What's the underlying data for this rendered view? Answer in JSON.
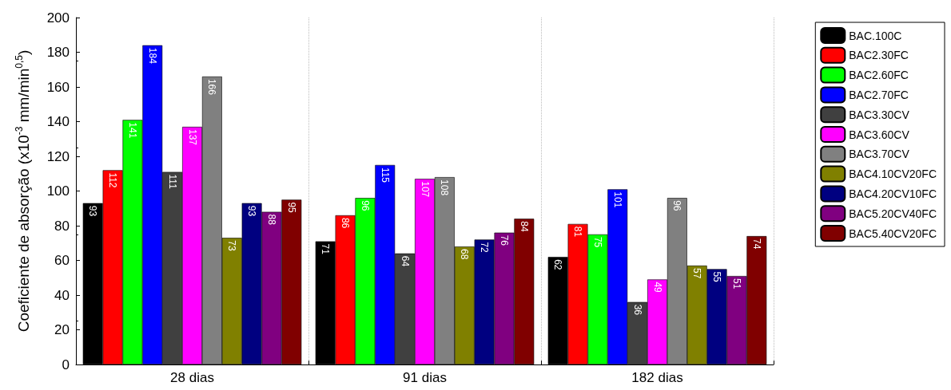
{
  "chart_data": {
    "type": "bar",
    "ylabel": "Coeficiente de absorção (x10$^{-3}$ mm/min$^{0,5}$)",
    "categories": [
      "28 dias",
      "91 dias",
      "182 dias"
    ],
    "series": [
      {
        "name": "BAC.100C",
        "color": "#000000",
        "values": [
          93,
          71,
          62
        ]
      },
      {
        "name": "BAC2.30FC",
        "color": "#ff0000",
        "values": [
          112,
          86,
          81
        ]
      },
      {
        "name": "BAC2.60FC",
        "color": "#00ff00",
        "values": [
          141,
          96,
          75
        ]
      },
      {
        "name": "BAC2.70FC",
        "color": "#0000ff",
        "values": [
          184,
          115,
          101
        ]
      },
      {
        "name": "BAC3.30CV",
        "color": "#404040",
        "values": [
          111,
          64,
          36
        ]
      },
      {
        "name": "BAC3.60CV",
        "color": "#ff00ff",
        "values": [
          137,
          107,
          49
        ]
      },
      {
        "name": "BAC3.70CV",
        "color": "#808080",
        "values": [
          166,
          108,
          96
        ]
      },
      {
        "name": "BAC4.10CV20FC",
        "color": "#808000",
        "values": [
          73,
          68,
          57
        ]
      },
      {
        "name": "BAC4.20CV10FC",
        "color": "#000080",
        "values": [
          93,
          72,
          55
        ]
      },
      {
        "name": "BAC5.20CV40FC",
        "color": "#800080",
        "values": [
          88,
          76,
          51
        ]
      },
      {
        "name": "BAC5.40CV20FC",
        "color": "#800000",
        "values": [
          95,
          84,
          74
        ]
      }
    ],
    "ylim": [
      0,
      200
    ],
    "yticks": [
      0,
      20,
      40,
      60,
      80,
      100,
      120,
      140,
      160,
      180,
      200
    ],
    "grid": "x",
    "legend": "right",
    "data_labels": true
  }
}
